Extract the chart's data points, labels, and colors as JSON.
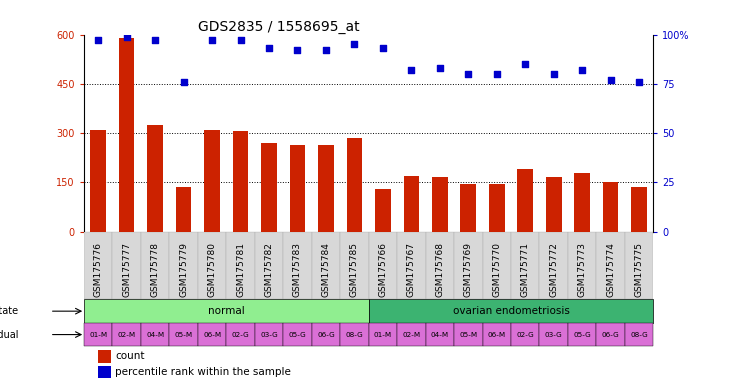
{
  "title": "GDS2835 / 1558695_at",
  "samples": [
    "GSM175776",
    "GSM175777",
    "GSM175778",
    "GSM175779",
    "GSM175780",
    "GSM175781",
    "GSM175782",
    "GSM175783",
    "GSM175784",
    "GSM175785",
    "GSM175766",
    "GSM175767",
    "GSM175768",
    "GSM175769",
    "GSM175770",
    "GSM175771",
    "GSM175772",
    "GSM175773",
    "GSM175774",
    "GSM175775"
  ],
  "counts": [
    310,
    590,
    325,
    135,
    310,
    305,
    270,
    265,
    265,
    285,
    130,
    170,
    165,
    145,
    145,
    190,
    165,
    180,
    150,
    135
  ],
  "percentiles": [
    97,
    99,
    97,
    76,
    97,
    97,
    93,
    92,
    92,
    95,
    93,
    82,
    83,
    80,
    80,
    85,
    80,
    82,
    77,
    76
  ],
  "individuals": [
    "01-M",
    "02-M",
    "04-M",
    "05-M",
    "06-M",
    "02-G",
    "03-G",
    "05-G",
    "06-G",
    "08-G",
    "01-M",
    "02-M",
    "04-M",
    "05-M",
    "06-M",
    "02-G",
    "03-G",
    "05-G",
    "06-G",
    "08-G"
  ],
  "bar_color": "#cc2200",
  "scatter_color": "#0000cc",
  "left_ylim": [
    0,
    600
  ],
  "right_ylim": [
    0,
    100
  ],
  "left_yticks": [
    0,
    150,
    300,
    450,
    600
  ],
  "right_yticks": [
    0,
    25,
    50,
    75,
    100
  ],
  "normal_color": "#90ee90",
  "endo_color": "#3cb371",
  "indiv_color": "#da70d6",
  "bg_color": "#ffffff",
  "title_fontsize": 10,
  "tick_fontsize": 7,
  "label_fontsize": 6.5
}
